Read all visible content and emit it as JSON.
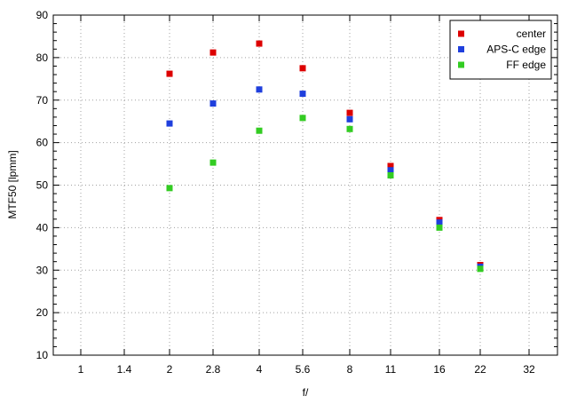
{
  "chart_data": {
    "type": "scatter",
    "xlabel": "f/",
    "ylabel": "MTF50 [lpmm]",
    "x_scale": "log",
    "x_ticks": [
      "1",
      "1.4",
      "2",
      "2.8",
      "4",
      "5.6",
      "8",
      "11",
      "16",
      "22",
      "32"
    ],
    "ylim": [
      10,
      90
    ],
    "y_ticks": [
      10,
      20,
      30,
      40,
      50,
      60,
      70,
      80,
      90
    ],
    "grid": true,
    "legend_position": "top-right",
    "series": [
      {
        "name": "center",
        "color": "#dd0000",
        "x": [
          "2",
          "2.8",
          "4",
          "5.6",
          "8",
          "11",
          "16",
          "22"
        ],
        "values": [
          76.2,
          81.2,
          83.3,
          77.5,
          67.0,
          54.5,
          41.8,
          31.2
        ]
      },
      {
        "name": "APS-C edge",
        "color": "#1f3fdd",
        "x": [
          "2",
          "2.8",
          "4",
          "5.6",
          "8",
          "11",
          "16",
          "22"
        ],
        "values": [
          64.5,
          69.2,
          72.5,
          71.5,
          65.5,
          53.5,
          41.2,
          30.8
        ]
      },
      {
        "name": "FF edge",
        "color": "#33cc22",
        "x": [
          "2",
          "2.8",
          "4",
          "5.6",
          "8",
          "11",
          "16",
          "22"
        ],
        "values": [
          49.3,
          55.3,
          62.8,
          65.8,
          63.2,
          52.3,
          40.0,
          30.3
        ]
      }
    ]
  }
}
